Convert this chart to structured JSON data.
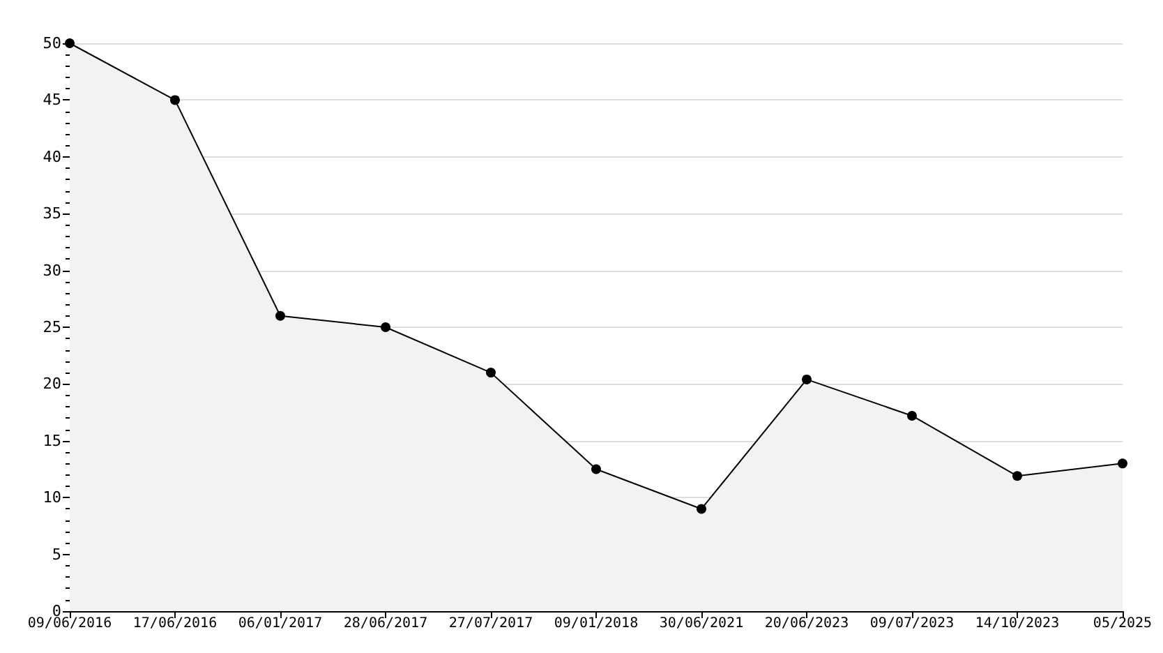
{
  "chart_data": {
    "type": "area",
    "categories": [
      "09/06/2016",
      "17/06/2016",
      "06/01/2017",
      "28/06/2017",
      "27/07/2017",
      "09/01/2018",
      "30/06/2021",
      "20/06/2023",
      "09/07/2023",
      "14/10/2023",
      "05/2025"
    ],
    "series": [
      {
        "color": "#000000",
        "values": [
          50,
          45,
          26,
          25,
          21,
          12.5,
          9,
          20.4,
          17.2,
          11.9,
          13
        ]
      }
    ],
    "ylim": [
      0,
      50
    ],
    "yticks": [
      0,
      5,
      10,
      15,
      20,
      25,
      30,
      35,
      40,
      45,
      50
    ],
    "grid": "y",
    "marker": "circle",
    "line_style": "solid"
  }
}
